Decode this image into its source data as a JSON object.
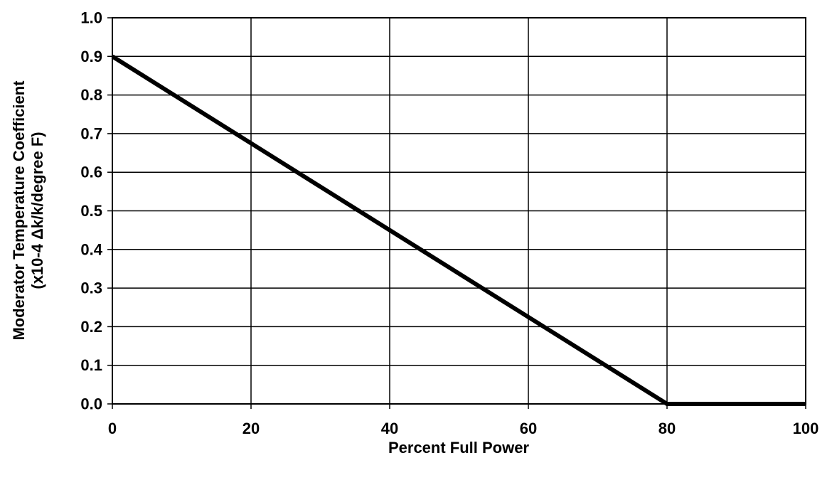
{
  "chart_data": {
    "type": "line",
    "xlabel": "Percent Full Power",
    "ylabel_lines": [
      "Moderator Temperature Coefficient",
      "(x10-4 Δk/k/degree F)"
    ],
    "xlim": [
      0,
      100
    ],
    "ylim": [
      0,
      1.0
    ],
    "x_ticks": [
      "0",
      "20",
      "40",
      "60",
      "80",
      "100"
    ],
    "y_ticks": [
      "0.0",
      "0.1",
      "0.2",
      "0.3",
      "0.4",
      "0.5",
      "0.6",
      "0.7",
      "0.8",
      "0.9",
      "1.0"
    ],
    "grid": true,
    "series": [
      {
        "x": [
          0,
          80,
          100
        ],
        "y": [
          0.9,
          0.0,
          0.0
        ],
        "color": "#000000"
      }
    ]
  }
}
